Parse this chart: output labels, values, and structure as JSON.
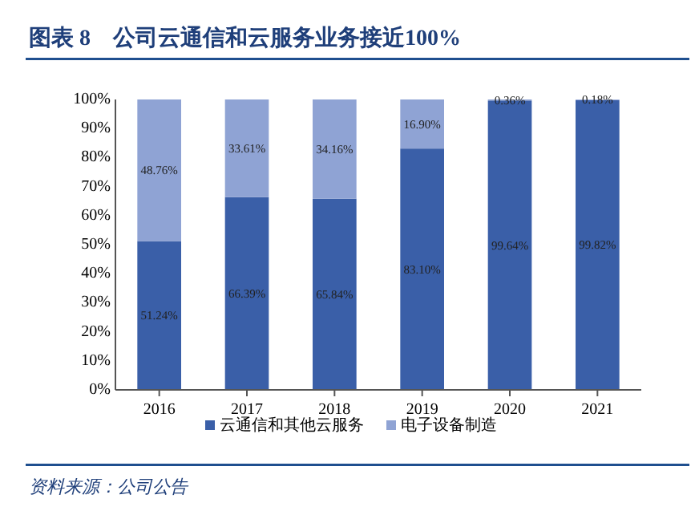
{
  "chart_data": {
    "type": "bar",
    "title": "图表 8　公司云通信和云服务业务接近100%",
    "annotations": [
      "资料来源：公司公告"
    ],
    "categories": [
      "2016",
      "2017",
      "2018",
      "2019",
      "2020",
      "2021"
    ],
    "stacked": true,
    "series": [
      {
        "name": "云通信和其他云服务",
        "color": "#3a5fa8",
        "values": [
          51.24,
          66.39,
          65.84,
          83.1,
          99.64,
          99.82
        ],
        "value_labels": [
          "51.24%",
          "66.39%",
          "65.84%",
          "83.10%",
          "99.64%",
          "99.82%"
        ]
      },
      {
        "name": "电子设备制造",
        "color": "#8fa3d4",
        "values": [
          48.76,
          33.61,
          34.16,
          16.9,
          0.36,
          0.18
        ],
        "value_labels": [
          "48.76%",
          "33.61%",
          "34.16%",
          "16.90%",
          "0.36%",
          "0.18%"
        ]
      }
    ],
    "ylim": [
      0,
      100
    ],
    "yticks": [
      {
        "value": 0,
        "label": "0%"
      },
      {
        "value": 10,
        "label": "10%"
      },
      {
        "value": 20,
        "label": "20%"
      },
      {
        "value": 30,
        "label": "30%"
      },
      {
        "value": 40,
        "label": "40%"
      },
      {
        "value": 50,
        "label": "50%"
      },
      {
        "value": 60,
        "label": "60%"
      },
      {
        "value": 70,
        "label": "70%"
      },
      {
        "value": 80,
        "label": "80%"
      },
      {
        "value": 90,
        "label": "90%"
      },
      {
        "value": 100,
        "label": "100%"
      }
    ],
    "legend": "bottom"
  }
}
